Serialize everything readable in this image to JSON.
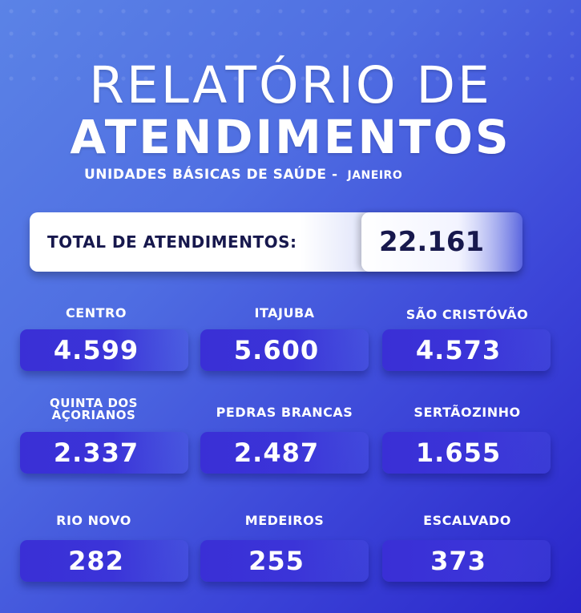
{
  "header": {
    "title_line1": "RELATÓRIO DE",
    "title_line2": "ATENDIMENTOS",
    "subtitle": "UNIDADES BÁSICAS DE SAÚDE -",
    "month": "JANEIRO"
  },
  "total": {
    "label": "TOTAL DE ATENDIMENTOS:",
    "value": "22.161"
  },
  "units": [
    {
      "name": "CENTRO",
      "value": "4.599"
    },
    {
      "name": "ITAJUBA",
      "value": "5.600"
    },
    {
      "name": "SÃO CRISTÓVÃO",
      "value": "4.573"
    },
    {
      "name": "QUINTA DOS AÇORIANOS",
      "name_line1": "QUINTA DOS",
      "name_line2": "AÇORIANOS",
      "value": "2.337"
    },
    {
      "name": "PEDRAS BRANCAS",
      "value": "2.487"
    },
    {
      "name": "SERTÃOZINHO",
      "value": "1.655"
    },
    {
      "name": "RIO NOVO",
      "value": "282"
    },
    {
      "name": "MEDEIROS",
      "value": "255"
    },
    {
      "name": "ESCALVADO",
      "value": "373"
    }
  ],
  "colors": {
    "background_light": "#5b83e6",
    "background_dark": "#2a25c9",
    "pill": "#3a2fd6",
    "total_text": "#17184d"
  }
}
